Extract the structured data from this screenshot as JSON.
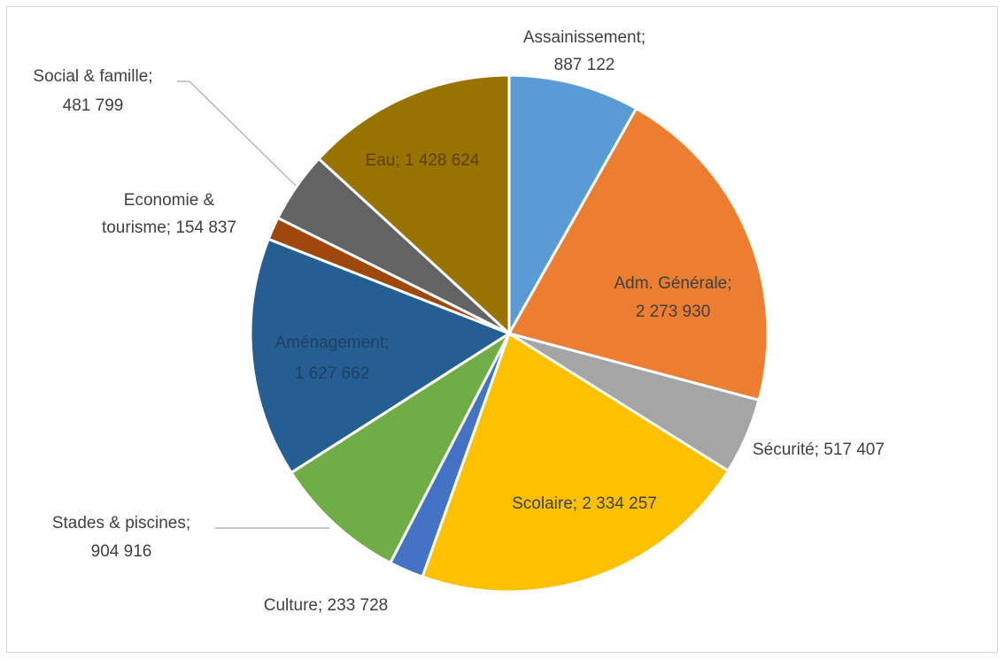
{
  "chart_data": {
    "type": "pie",
    "slices": [
      {
        "label": "Assainissement",
        "value": 887122,
        "value_text": "887 122",
        "color": "#5b9bd5"
      },
      {
        "label": "Adm. Générale",
        "value": 2273930,
        "value_text": "2 273 930",
        "color": "#ed7d31"
      },
      {
        "label": "Sécurité",
        "value": 517407,
        "value_text": "517 407",
        "color": "#a5a5a5"
      },
      {
        "label": "Scolaire",
        "value": 2334257,
        "value_text": "2 334 257",
        "color": "#ffc000"
      },
      {
        "label": "Culture",
        "value": 233728,
        "value_text": "233 728",
        "color": "#4472c4"
      },
      {
        "label": "Stades & piscines",
        "value": 904916,
        "value_text": "904 916",
        "color": "#70ad47"
      },
      {
        "label": "Aménagement",
        "value": 1627662,
        "value_text": "1 627 662",
        "color": "#255e91"
      },
      {
        "label": "Economie & tourisme",
        "value": 154837,
        "value_text": "154 837",
        "color": "#9e480e"
      },
      {
        "label": "Social & famille",
        "value": 481799,
        "value_text": "481 799",
        "color": "#636363"
      },
      {
        "label": "Eau",
        "value": 1428624,
        "value_text": "1 428 624",
        "color": "#997300"
      }
    ]
  },
  "labels": {
    "assainissement": {
      "line1": "Assainissement;",
      "line2": "887 122"
    },
    "adm": {
      "line1": "Adm. Générale;",
      "line2": "2 273 930"
    },
    "securite": "Sécurité; 517 407",
    "scolaire": "Scolaire; 2 334 257",
    "culture": "Culture; 233 728",
    "stades": {
      "line1": "Stades & piscines;",
      "line2": "904 916"
    },
    "amenagement": {
      "line1": "Aménagement;",
      "line2": "1 627 662"
    },
    "economie": {
      "line1": "Economie &",
      "line2": "tourisme; 154 837"
    },
    "social": {
      "line1": "Social & famille;",
      "line2": "481 799"
    },
    "eau": "Eau; 1 428 624"
  }
}
